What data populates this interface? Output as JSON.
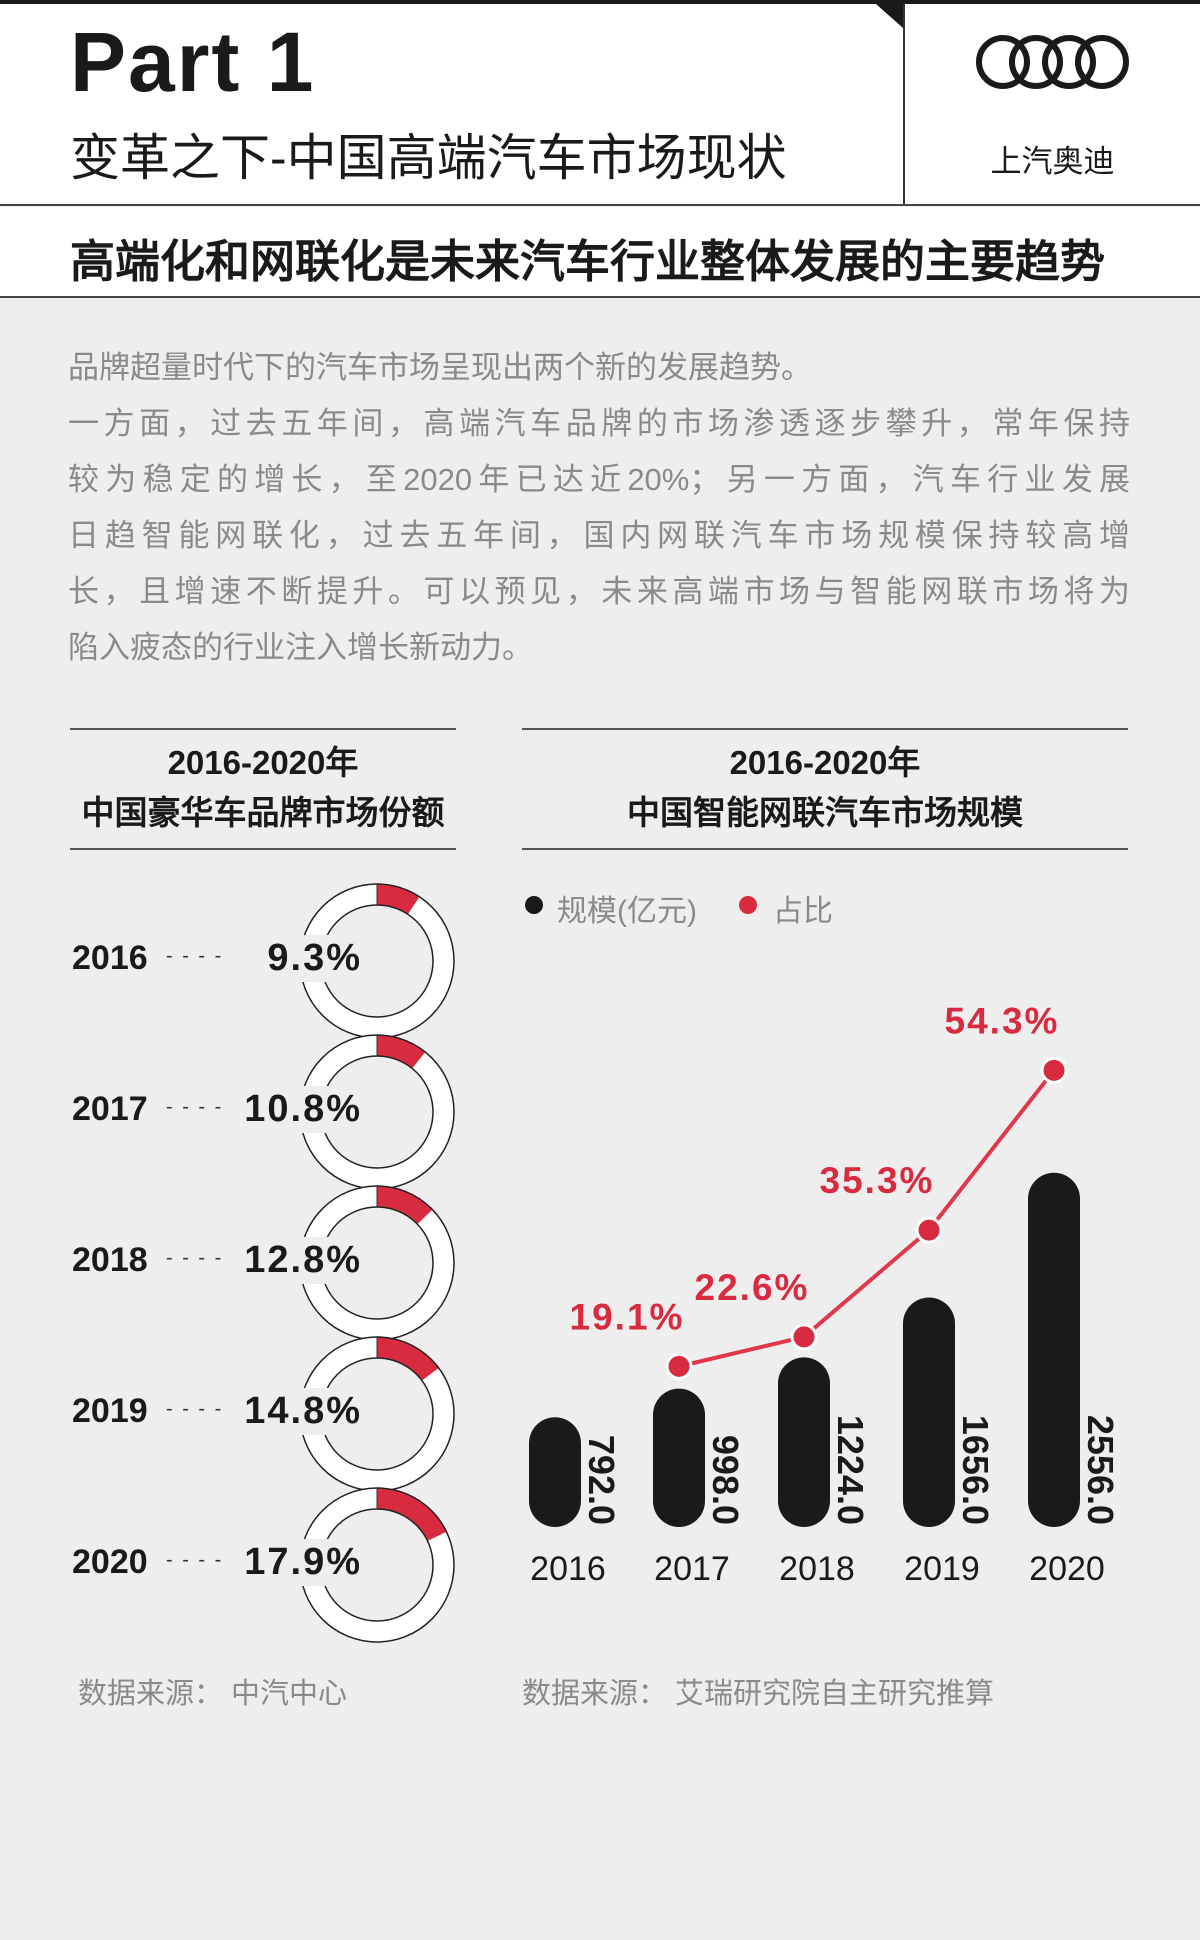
{
  "header": {
    "part": "Part 1",
    "subtitle": "变革之下-中国高端汽车市场现状",
    "brand_logo": "audi-rings-logo",
    "brand_name": "上汽奥迪",
    "headline": "高端化和网联化是未来汽车行业整体发展的主要趋势"
  },
  "intro": {
    "lines": [
      "品牌超量时代下的汽车市场呈现出两个新的发展趋势。",
      "一方面，过去五年间，高端汽车品牌的市场渗透逐步攀升，常年保持",
      "较为稳定的增长，至2020年已达近20%；另一方面，汽车行业发展",
      "日趋智能网联化，过去五年间，国内网联汽车市场规模保持较高增",
      "长，且增速不断提升。可以预见，未来高端市场与智能网联市场将为",
      "陷入疲态的行业注入增长新动力。"
    ]
  },
  "colors": {
    "accent_red": "#d92b3f",
    "bar_black": "#1a1a1a",
    "background": "#eeeeee"
  },
  "chart_data": [
    {
      "type": "pie",
      "variant": "donut",
      "title": "2016-2020年",
      "subtitle": "中国豪华车品牌市场份额",
      "categories": [
        "2016",
        "2017",
        "2018",
        "2019",
        "2020"
      ],
      "values": [
        9.3,
        10.8,
        12.8,
        14.8,
        17.9
      ],
      "labels": [
        "9.3%",
        "10.8%",
        "12.8%",
        "14.8%",
        "17.9%"
      ],
      "source": "数据来源：  中汽中心"
    },
    {
      "type": "bar",
      "title": "2016-2020年",
      "subtitle": "中国智能网联汽车市场规模",
      "legend": [
        "规模(亿元)",
        "占比"
      ],
      "legend_placement": "top-left",
      "categories": [
        "2016",
        "2017",
        "2018",
        "2019",
        "2020"
      ],
      "series": [
        {
          "name": "规模(亿元)",
          "type": "bar",
          "values": [
            792.0,
            998.0,
            1224.0,
            1656.0,
            2556.0
          ],
          "labels": [
            "792.0",
            "998.0",
            "1224.0",
            "1656.0",
            "2556.0"
          ]
        },
        {
          "name": "占比",
          "type": "line",
          "values": [
            null,
            19.1,
            22.6,
            35.3,
            54.3
          ],
          "labels": [
            "",
            "19.1%",
            "22.6%",
            "35.3%",
            "54.3%"
          ]
        }
      ],
      "grid": false,
      "source": "数据来源：  艾瑞研究院自主研究推算"
    }
  ]
}
